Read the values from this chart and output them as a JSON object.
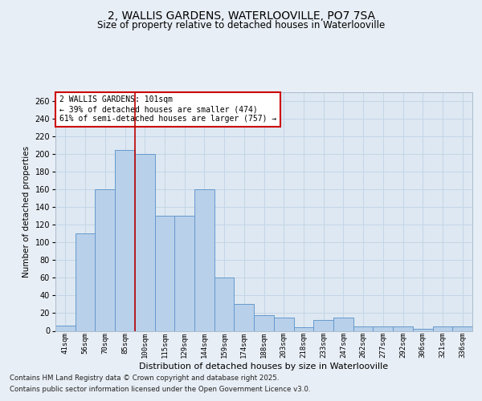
{
  "title1": "2, WALLIS GARDENS, WATERLOOVILLE, PO7 7SA",
  "title2": "Size of property relative to detached houses in Waterlooville",
  "xlabel": "Distribution of detached houses by size in Waterlooville",
  "ylabel": "Number of detached properties",
  "categories": [
    "41sqm",
    "56sqm",
    "70sqm",
    "85sqm",
    "100sqm",
    "115sqm",
    "129sqm",
    "144sqm",
    "159sqm",
    "174sqm",
    "188sqm",
    "203sqm",
    "218sqm",
    "233sqm",
    "247sqm",
    "262sqm",
    "277sqm",
    "292sqm",
    "306sqm",
    "321sqm",
    "336sqm"
  ],
  "values": [
    6,
    110,
    160,
    205,
    200,
    130,
    130,
    160,
    60,
    30,
    18,
    15,
    4,
    12,
    15,
    5,
    5,
    5,
    2,
    5,
    5
  ],
  "bar_color": "#b8d0ea",
  "bar_edge_color": "#6699cc",
  "grid_color": "#c5d5e5",
  "vline_x_index": 3,
  "vline_color": "#bb0000",
  "annotation_text": "2 WALLIS GARDENS: 101sqm\n← 39% of detached houses are smaller (474)\n61% of semi-detached houses are larger (757) →",
  "annotation_box_color": "#ffffff",
  "annotation_box_edge": "#cc0000",
  "footer1": "Contains HM Land Registry data © Crown copyright and database right 2025.",
  "footer2": "Contains public sector information licensed under the Open Government Licence v3.0.",
  "bg_color": "#e8eef5",
  "plot_bg_color": "#dde8f2",
  "ylim": [
    0,
    270
  ],
  "yticks": [
    0,
    20,
    40,
    60,
    80,
    100,
    120,
    140,
    160,
    180,
    200,
    220,
    240,
    260
  ]
}
